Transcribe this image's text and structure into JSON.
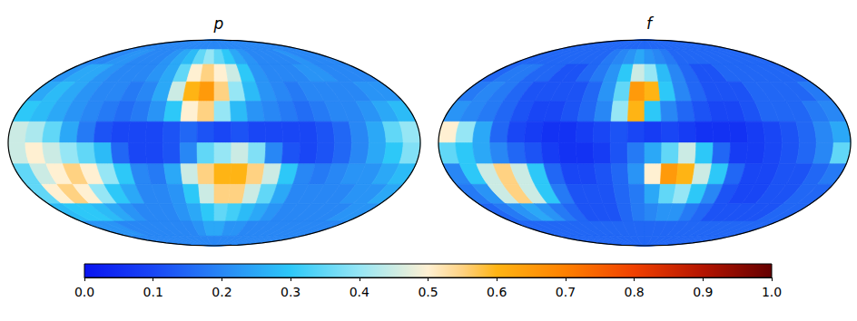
{
  "chart_data": {
    "type": "heatmap",
    "lon_bins": [
      180,
      165,
      150,
      135,
      120,
      105,
      90,
      75,
      60,
      45,
      30,
      15,
      0,
      -15,
      -30,
      -45,
      -60,
      -75,
      -90,
      -105,
      -120,
      -135,
      -150,
      -165,
      -180
    ],
    "lat_bins": [
      90,
      75,
      60,
      45,
      30,
      15,
      0,
      -15,
      -30,
      -45,
      -60,
      -75,
      -90
    ],
    "panels": [
      {
        "title": "p",
        "cells": [
          [
            0.2,
            0.2,
            0.2,
            0.2,
            0.2,
            0.2,
            0.2,
            0.2,
            0.2,
            0.2,
            0.2,
            0.2,
            0.2,
            0.2,
            0.2,
            0.2,
            0.2,
            0.2,
            0.2,
            0.2,
            0.2,
            0.2,
            0.2,
            0.2
          ],
          [
            0.2,
            0.2,
            0.22,
            0.22,
            0.2,
            0.2,
            0.2,
            0.22,
            0.25,
            0.28,
            0.35,
            0.4,
            0.35,
            0.3,
            0.25,
            0.22,
            0.2,
            0.2,
            0.2,
            0.2,
            0.22,
            0.2,
            0.2,
            0.2
          ],
          [
            0.22,
            0.25,
            0.25,
            0.22,
            0.2,
            0.2,
            0.2,
            0.22,
            0.25,
            0.35,
            0.5,
            0.55,
            0.5,
            0.45,
            0.3,
            0.22,
            0.2,
            0.2,
            0.2,
            0.22,
            0.22,
            0.2,
            0.2,
            0.2
          ],
          [
            0.25,
            0.28,
            0.25,
            0.22,
            0.2,
            0.2,
            0.18,
            0.2,
            0.25,
            0.45,
            0.6,
            0.65,
            0.55,
            0.4,
            0.28,
            0.22,
            0.2,
            0.18,
            0.2,
            0.2,
            0.2,
            0.2,
            0.22,
            0.22
          ],
          [
            0.3,
            0.28,
            0.25,
            0.22,
            0.2,
            0.18,
            0.16,
            0.18,
            0.22,
            0.3,
            0.5,
            0.55,
            0.4,
            0.28,
            0.22,
            0.2,
            0.18,
            0.16,
            0.18,
            0.2,
            0.2,
            0.22,
            0.25,
            0.28
          ],
          [
            0.45,
            0.42,
            0.35,
            0.25,
            0.18,
            0.12,
            0.1,
            0.1,
            0.1,
            0.12,
            0.15,
            0.12,
            0.1,
            0.12,
            0.1,
            0.1,
            0.1,
            0.1,
            0.12,
            0.15,
            0.2,
            0.25,
            0.35,
            0.4
          ],
          [
            0.45,
            0.5,
            0.45,
            0.4,
            0.35,
            0.28,
            0.15,
            0.1,
            0.1,
            0.12,
            0.2,
            0.35,
            0.4,
            0.45,
            0.38,
            0.2,
            0.12,
            0.1,
            0.12,
            0.15,
            0.2,
            0.25,
            0.3,
            0.38
          ],
          [
            0.35,
            0.45,
            0.5,
            0.55,
            0.5,
            0.4,
            0.3,
            0.2,
            0.18,
            0.25,
            0.45,
            0.55,
            0.6,
            0.6,
            0.55,
            0.45,
            0.3,
            0.2,
            0.18,
            0.2,
            0.22,
            0.22,
            0.25,
            0.28
          ],
          [
            0.35,
            0.5,
            0.55,
            0.5,
            0.4,
            0.3,
            0.25,
            0.2,
            0.2,
            0.22,
            0.3,
            0.45,
            0.55,
            0.55,
            0.45,
            0.35,
            0.25,
            0.2,
            0.2,
            0.2,
            0.2,
            0.22,
            0.22,
            0.25
          ],
          [
            0.28,
            0.3,
            0.3,
            0.28,
            0.25,
            0.22,
            0.2,
            0.2,
            0.2,
            0.22,
            0.25,
            0.3,
            0.35,
            0.32,
            0.28,
            0.25,
            0.22,
            0.2,
            0.2,
            0.2,
            0.2,
            0.2,
            0.22,
            0.22
          ],
          [
            0.22,
            0.22,
            0.22,
            0.2,
            0.2,
            0.2,
            0.2,
            0.2,
            0.2,
            0.2,
            0.22,
            0.25,
            0.25,
            0.22,
            0.22,
            0.2,
            0.2,
            0.2,
            0.2,
            0.2,
            0.2,
            0.2,
            0.2,
            0.2
          ],
          [
            0.2,
            0.2,
            0.2,
            0.2,
            0.2,
            0.2,
            0.2,
            0.2,
            0.2,
            0.2,
            0.2,
            0.2,
            0.2,
            0.2,
            0.2,
            0.2,
            0.2,
            0.2,
            0.2,
            0.2,
            0.2,
            0.2,
            0.2,
            0.2
          ]
        ]
      },
      {
        "title": "f",
        "cells": [
          [
            0.15,
            0.15,
            0.15,
            0.15,
            0.15,
            0.15,
            0.15,
            0.15,
            0.15,
            0.15,
            0.15,
            0.15,
            0.15,
            0.15,
            0.15,
            0.15,
            0.15,
            0.15,
            0.15,
            0.15,
            0.15,
            0.15,
            0.15,
            0.15
          ],
          [
            0.15,
            0.15,
            0.15,
            0.15,
            0.15,
            0.15,
            0.15,
            0.15,
            0.18,
            0.2,
            0.22,
            0.25,
            0.22,
            0.2,
            0.18,
            0.15,
            0.15,
            0.15,
            0.15,
            0.15,
            0.15,
            0.15,
            0.15,
            0.15
          ],
          [
            0.15,
            0.18,
            0.18,
            0.15,
            0.15,
            0.12,
            0.12,
            0.15,
            0.18,
            0.22,
            0.3,
            0.45,
            0.4,
            0.28,
            0.2,
            0.15,
            0.12,
            0.12,
            0.15,
            0.15,
            0.15,
            0.15,
            0.15,
            0.15
          ],
          [
            0.18,
            0.2,
            0.18,
            0.15,
            0.12,
            0.12,
            0.12,
            0.12,
            0.15,
            0.22,
            0.35,
            0.65,
            0.6,
            0.3,
            0.2,
            0.15,
            0.12,
            0.12,
            0.12,
            0.15,
            0.15,
            0.15,
            0.15,
            0.18
          ],
          [
            0.22,
            0.2,
            0.18,
            0.15,
            0.12,
            0.1,
            0.1,
            0.12,
            0.15,
            0.2,
            0.4,
            0.6,
            0.3,
            0.2,
            0.15,
            0.12,
            0.1,
            0.1,
            0.12,
            0.15,
            0.15,
            0.15,
            0.18,
            0.2
          ],
          [
            0.5,
            0.4,
            0.25,
            0.15,
            0.1,
            0.08,
            0.06,
            0.06,
            0.08,
            0.1,
            0.12,
            0.1,
            0.08,
            0.1,
            0.08,
            0.06,
            0.06,
            0.06,
            0.08,
            0.1,
            0.12,
            0.15,
            0.2,
            0.25
          ],
          [
            0.35,
            0.3,
            0.25,
            0.2,
            0.15,
            0.12,
            0.08,
            0.06,
            0.06,
            0.08,
            0.12,
            0.18,
            0.25,
            0.35,
            0.45,
            0.3,
            0.15,
            0.08,
            0.08,
            0.1,
            0.12,
            0.15,
            0.2,
            0.35
          ],
          [
            0.2,
            0.3,
            0.45,
            0.55,
            0.45,
            0.3,
            0.15,
            0.1,
            0.1,
            0.12,
            0.15,
            0.22,
            0.5,
            0.65,
            0.6,
            0.45,
            0.3,
            0.15,
            0.1,
            0.1,
            0.12,
            0.12,
            0.15,
            0.18
          ],
          [
            0.18,
            0.22,
            0.45,
            0.55,
            0.45,
            0.3,
            0.18,
            0.12,
            0.12,
            0.12,
            0.15,
            0.18,
            0.25,
            0.35,
            0.4,
            0.3,
            0.2,
            0.12,
            0.1,
            0.1,
            0.12,
            0.12,
            0.15,
            0.15
          ],
          [
            0.15,
            0.18,
            0.22,
            0.25,
            0.22,
            0.18,
            0.15,
            0.12,
            0.12,
            0.12,
            0.15,
            0.18,
            0.2,
            0.22,
            0.22,
            0.18,
            0.15,
            0.12,
            0.12,
            0.12,
            0.12,
            0.12,
            0.15,
            0.15
          ],
          [
            0.15,
            0.15,
            0.15,
            0.15,
            0.15,
            0.15,
            0.15,
            0.15,
            0.15,
            0.15,
            0.15,
            0.15,
            0.15,
            0.15,
            0.15,
            0.15,
            0.15,
            0.15,
            0.15,
            0.15,
            0.15,
            0.15,
            0.15,
            0.15
          ],
          [
            0.15,
            0.15,
            0.15,
            0.15,
            0.15,
            0.15,
            0.15,
            0.15,
            0.15,
            0.15,
            0.15,
            0.15,
            0.15,
            0.15,
            0.15,
            0.15,
            0.15,
            0.15,
            0.15,
            0.15,
            0.15,
            0.15,
            0.15,
            0.15
          ]
        ]
      }
    ],
    "colorbar": {
      "range": [
        0,
        1
      ],
      "ticks": [
        {
          "value": 0,
          "label": "0.0"
        },
        {
          "value": 0.1,
          "label": "0.1"
        },
        {
          "value": 0.2,
          "label": "0.2"
        },
        {
          "value": 0.3,
          "label": "0.3"
        },
        {
          "value": 0.4,
          "label": "0.4"
        },
        {
          "value": 0.5,
          "label": "0.5"
        },
        {
          "value": 0.6,
          "label": "0.6"
        },
        {
          "value": 0.7,
          "label": "0.7"
        },
        {
          "value": 0.8,
          "label": "0.8"
        },
        {
          "value": 0.9,
          "label": "0.9"
        },
        {
          "value": 1,
          "label": "1.0"
        }
      ]
    }
  }
}
